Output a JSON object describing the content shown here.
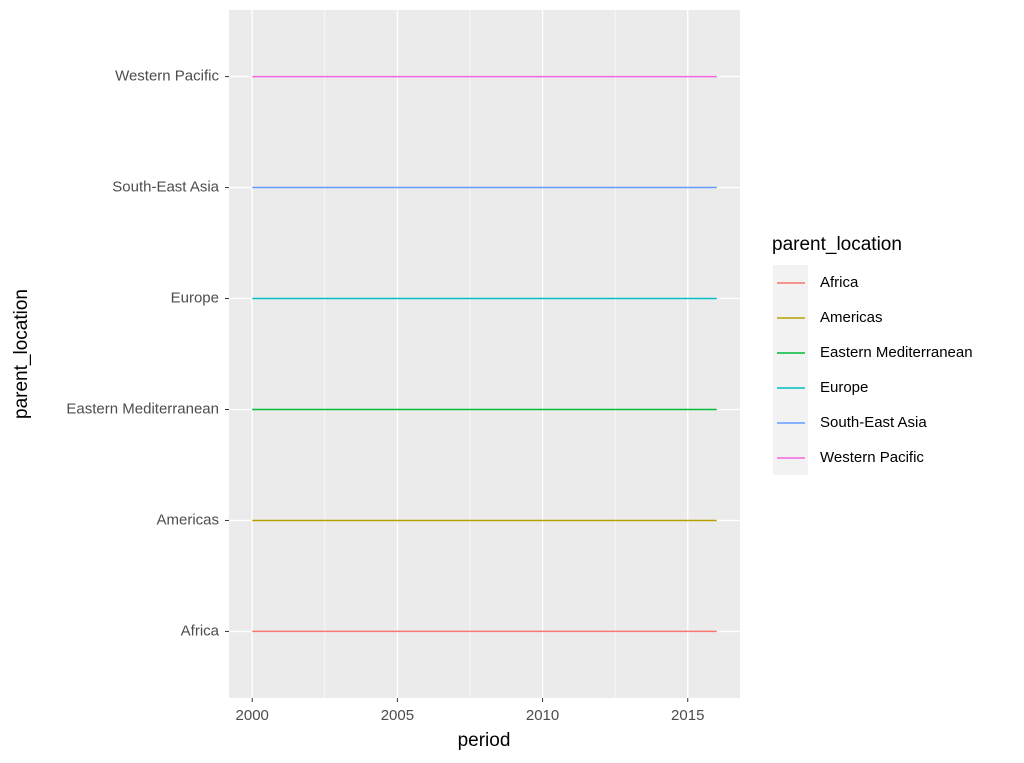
{
  "chart_data": {
    "type": "line",
    "x_label": "period",
    "y_label": "parent_location",
    "x": [
      2000,
      2016
    ],
    "xlim": [
      1999.2,
      2016.8
    ],
    "xticks": [
      2000,
      2005,
      2010,
      2015
    ],
    "categories": [
      "Africa",
      "Americas",
      "Eastern Mediterranean",
      "Europe",
      "South-East Asia",
      "Western Pacific"
    ],
    "legend_title": "parent_location",
    "legend_position": "right",
    "grid": true,
    "series": [
      {
        "name": "Africa",
        "color": "#F8766D",
        "values": [
          "Africa",
          "Africa"
        ]
      },
      {
        "name": "Americas",
        "color": "#B79F00",
        "values": [
          "Americas",
          "Americas"
        ]
      },
      {
        "name": "Eastern Mediterranean",
        "color": "#00BA38",
        "values": [
          "Eastern Mediterranean",
          "Eastern Mediterranean"
        ]
      },
      {
        "name": "Europe",
        "color": "#00BFC4",
        "values": [
          "Europe",
          "Europe"
        ]
      },
      {
        "name": "South-East Asia",
        "color": "#619CFF",
        "values": [
          "South-East Asia",
          "South-East Asia"
        ]
      },
      {
        "name": "Western Pacific",
        "color": "#F564E3",
        "values": [
          "Western Pacific",
          "Western Pacific"
        ]
      }
    ]
  }
}
